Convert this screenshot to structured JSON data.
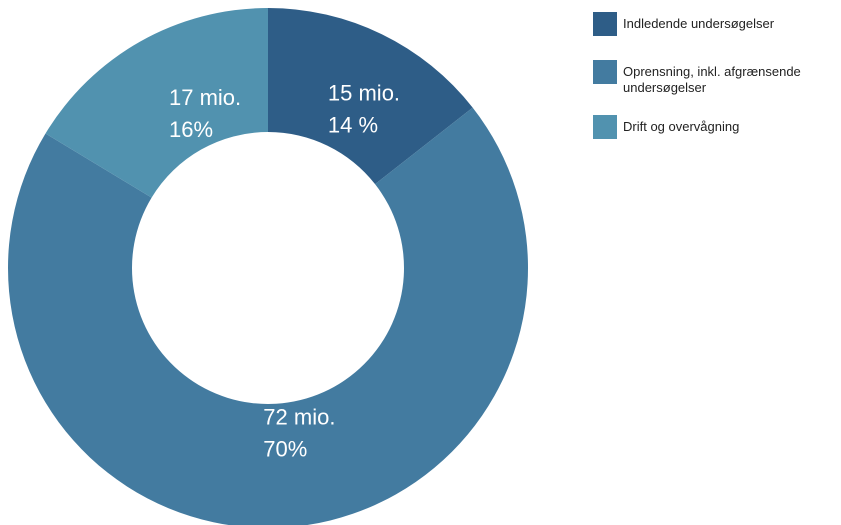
{
  "chart_data": {
    "type": "pie",
    "variant": "donut",
    "title": "",
    "categories": [
      "Indledende undersøgelser",
      "Oprensning, inkl. afgrænsende undersøgelser",
      "Drift og overvågning"
    ],
    "values": [
      15,
      72,
      17
    ],
    "amount_labels": [
      "15 mio.",
      "72 mio.",
      "17 mio."
    ],
    "percent_labels": [
      "14 %",
      "70%",
      "16%"
    ],
    "colors": [
      "#2e5d87",
      "#437ba0",
      "#5192af"
    ],
    "legend_position": "right"
  }
}
